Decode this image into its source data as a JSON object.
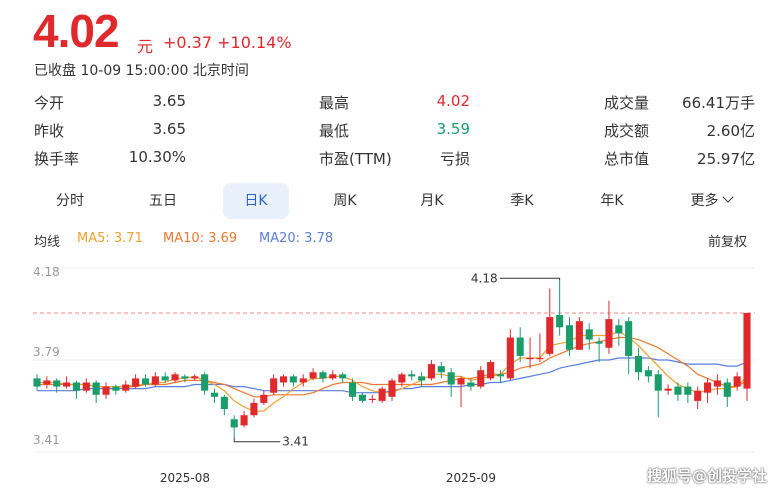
{
  "quote": {
    "price": "4.02",
    "unit": "元",
    "change": "+0.37 +10.14%",
    "status": "已收盘 10-09 15:00:00 北京时间"
  },
  "stats": [
    {
      "label": "今开",
      "value": "3.65",
      "color": "normal"
    },
    {
      "label": "最高",
      "value": "4.02",
      "color": "red"
    },
    {
      "label": "成交量",
      "value": "66.41万手",
      "color": "normal"
    },
    {
      "label": "昨收",
      "value": "3.65",
      "color": "normal"
    },
    {
      "label": "最低",
      "value": "3.59",
      "color": "green"
    },
    {
      "label": "成交额",
      "value": "2.60亿",
      "color": "normal"
    },
    {
      "label": "换手率",
      "value": "10.30%",
      "color": "normal"
    },
    {
      "label": "市盈(TTM)",
      "value": "亏损",
      "color": "normal"
    },
    {
      "label": "总市值",
      "value": "25.97亿",
      "color": "normal"
    }
  ],
  "tabs": [
    "分时",
    "五日",
    "日K",
    "周K",
    "月K",
    "季K",
    "年K",
    "更多"
  ],
  "active_tab": "日K",
  "more_icon": "chevron-down-icon",
  "ma": {
    "label": "均线",
    "ma5": "MA5: 3.71",
    "ma10": "MA10: 3.69",
    "ma20": "MA20: 3.78",
    "adjust": "前复权"
  },
  "colors": {
    "up": "#e0292d",
    "down": "#1a9c6b",
    "ma5": "#f0a030",
    "ma10": "#f07830",
    "ma20": "#5a7fe0",
    "accent": "#2b63c8"
  },
  "chart_data": {
    "type": "candlestick",
    "y_ticks": [
      "4.18",
      "3.79",
      "3.41"
    ],
    "x_ticks": [
      "2025-08",
      "2025-09"
    ],
    "ylim": [
      3.41,
      4.18
    ],
    "max_label": "4.18",
    "min_label": "3.41",
    "last_close_line": 4.02,
    "candles": [
      [
        3.7,
        3.66,
        3.72,
        3.64
      ],
      [
        3.67,
        3.69,
        3.71,
        3.65
      ],
      [
        3.69,
        3.66,
        3.7,
        3.63
      ],
      [
        3.66,
        3.68,
        3.71,
        3.65
      ],
      [
        3.68,
        3.64,
        3.69,
        3.6
      ],
      [
        3.64,
        3.68,
        3.7,
        3.63
      ],
      [
        3.68,
        3.62,
        3.69,
        3.58
      ],
      [
        3.62,
        3.66,
        3.68,
        3.6
      ],
      [
        3.66,
        3.64,
        3.67,
        3.62
      ],
      [
        3.64,
        3.67,
        3.69,
        3.63
      ],
      [
        3.66,
        3.7,
        3.72,
        3.65
      ],
      [
        3.7,
        3.67,
        3.72,
        3.66
      ],
      [
        3.67,
        3.71,
        3.73,
        3.66
      ],
      [
        3.71,
        3.69,
        3.73,
        3.68
      ],
      [
        3.69,
        3.72,
        3.73,
        3.68
      ],
      [
        3.71,
        3.7,
        3.72,
        3.68
      ],
      [
        3.7,
        3.71,
        3.72,
        3.69
      ],
      [
        3.72,
        3.64,
        3.73,
        3.62
      ],
      [
        3.63,
        3.61,
        3.65,
        3.58
      ],
      [
        3.61,
        3.55,
        3.62,
        3.52
      ],
      [
        3.5,
        3.46,
        3.52,
        3.41
      ],
      [
        3.47,
        3.52,
        3.54,
        3.46
      ],
      [
        3.52,
        3.58,
        3.6,
        3.51
      ],
      [
        3.58,
        3.62,
        3.64,
        3.57
      ],
      [
        3.63,
        3.7,
        3.72,
        3.62
      ],
      [
        3.68,
        3.71,
        3.72,
        3.66
      ],
      [
        3.71,
        3.68,
        3.72,
        3.66
      ],
      [
        3.68,
        3.7,
        3.72,
        3.66
      ],
      [
        3.7,
        3.73,
        3.75,
        3.69
      ],
      [
        3.73,
        3.7,
        3.74,
        3.68
      ],
      [
        3.7,
        3.72,
        3.74,
        3.69
      ],
      [
        3.72,
        3.7,
        3.73,
        3.68
      ],
      [
        3.68,
        3.61,
        3.7,
        3.59
      ],
      [
        3.62,
        3.59,
        3.63,
        3.58
      ],
      [
        3.6,
        3.6,
        3.62,
        3.58
      ],
      [
        3.59,
        3.65,
        3.66,
        3.58
      ],
      [
        3.61,
        3.69,
        3.7,
        3.59
      ],
      [
        3.68,
        3.72,
        3.73,
        3.66
      ],
      [
        3.72,
        3.71,
        3.74,
        3.69
      ],
      [
        3.71,
        3.69,
        3.73,
        3.66
      ],
      [
        3.7,
        3.77,
        3.79,
        3.69
      ],
      [
        3.76,
        3.73,
        3.78,
        3.7
      ],
      [
        3.73,
        3.67,
        3.75,
        3.61
      ],
      [
        3.67,
        3.7,
        3.71,
        3.56
      ],
      [
        3.68,
        3.66,
        3.7,
        3.64
      ],
      [
        3.66,
        3.74,
        3.76,
        3.65
      ],
      [
        3.7,
        3.78,
        3.79,
        3.69
      ],
      [
        3.72,
        3.71,
        3.74,
        3.68
      ],
      [
        3.7,
        3.9,
        3.94,
        3.69
      ],
      [
        3.9,
        3.81,
        3.95,
        3.78
      ],
      [
        3.8,
        3.8,
        3.9,
        3.75
      ],
      [
        3.8,
        3.8,
        3.92,
        3.78
      ],
      [
        3.82,
        4.0,
        4.14,
        3.81
      ],
      [
        4.01,
        3.95,
        4.18,
        3.91
      ],
      [
        3.96,
        3.84,
        4.0,
        3.81
      ],
      [
        3.84,
        3.98,
        4.0,
        3.84
      ],
      [
        3.94,
        3.89,
        3.97,
        3.84
      ],
      [
        3.88,
        3.87,
        3.9,
        3.78
      ],
      [
        3.85,
        3.99,
        4.08,
        3.82
      ],
      [
        3.96,
        3.92,
        3.99,
        3.86
      ],
      [
        3.98,
        3.81,
        4.0,
        3.72
      ],
      [
        3.81,
        3.73,
        3.85,
        3.69
      ],
      [
        3.74,
        3.71,
        3.76,
        3.68
      ],
      [
        3.72,
        3.64,
        3.74,
        3.51
      ],
      [
        3.64,
        3.65,
        3.67,
        3.62
      ],
      [
        3.66,
        3.62,
        3.68,
        3.59
      ],
      [
        3.66,
        3.62,
        3.68,
        3.58
      ],
      [
        3.59,
        3.64,
        3.66,
        3.55
      ],
      [
        3.63,
        3.68,
        3.7,
        3.58
      ],
      [
        3.66,
        3.69,
        3.72,
        3.62
      ],
      [
        3.68,
        3.61,
        3.7,
        3.56
      ],
      [
        3.66,
        3.71,
        3.73,
        3.64
      ],
      [
        3.65,
        4.02,
        4.02,
        3.59
      ]
    ],
    "ma5": [
      3.68,
      3.68,
      3.68,
      3.67,
      3.67,
      3.67,
      3.66,
      3.66,
      3.66,
      3.66,
      3.67,
      3.67,
      3.68,
      3.68,
      3.7,
      3.7,
      3.71,
      3.69,
      3.67,
      3.64,
      3.59,
      3.56,
      3.54,
      3.54,
      3.58,
      3.61,
      3.65,
      3.68,
      3.7,
      3.7,
      3.71,
      3.71,
      3.69,
      3.66,
      3.64,
      3.63,
      3.63,
      3.65,
      3.67,
      3.69,
      3.72,
      3.72,
      3.71,
      3.71,
      3.69,
      3.7,
      3.71,
      3.72,
      3.77,
      3.8,
      3.8,
      3.8,
      3.86,
      3.87,
      3.88,
      3.91,
      3.91,
      3.91,
      3.91,
      3.93,
      3.9,
      3.86,
      3.81,
      3.76,
      3.71,
      3.67,
      3.65,
      3.63,
      3.64,
      3.65,
      3.65,
      3.66,
      3.71
    ],
    "ma10": [
      3.67,
      3.67,
      3.67,
      3.67,
      3.67,
      3.67,
      3.66,
      3.66,
      3.66,
      3.66,
      3.66,
      3.67,
      3.67,
      3.67,
      3.68,
      3.69,
      3.69,
      3.69,
      3.68,
      3.67,
      3.65,
      3.63,
      3.61,
      3.61,
      3.62,
      3.62,
      3.62,
      3.62,
      3.63,
      3.65,
      3.67,
      3.68,
      3.68,
      3.68,
      3.67,
      3.67,
      3.67,
      3.67,
      3.67,
      3.67,
      3.67,
      3.68,
      3.69,
      3.7,
      3.7,
      3.71,
      3.72,
      3.72,
      3.73,
      3.75,
      3.76,
      3.77,
      3.8,
      3.82,
      3.84,
      3.86,
      3.87,
      3.88,
      3.89,
      3.9,
      3.9,
      3.89,
      3.87,
      3.85,
      3.82,
      3.79,
      3.76,
      3.72,
      3.7,
      3.68,
      3.66,
      3.66,
      3.69
    ],
    "ma20": [
      3.64,
      3.64,
      3.64,
      3.64,
      3.64,
      3.65,
      3.65,
      3.65,
      3.65,
      3.65,
      3.65,
      3.65,
      3.66,
      3.66,
      3.66,
      3.66,
      3.67,
      3.67,
      3.67,
      3.67,
      3.66,
      3.66,
      3.65,
      3.64,
      3.64,
      3.64,
      3.64,
      3.64,
      3.64,
      3.64,
      3.64,
      3.64,
      3.63,
      3.63,
      3.63,
      3.63,
      3.64,
      3.65,
      3.65,
      3.66,
      3.66,
      3.66,
      3.66,
      3.66,
      3.67,
      3.67,
      3.68,
      3.68,
      3.69,
      3.7,
      3.71,
      3.72,
      3.73,
      3.75,
      3.76,
      3.77,
      3.78,
      3.79,
      3.79,
      3.8,
      3.8,
      3.8,
      3.8,
      3.79,
      3.79,
      3.78,
      3.77,
      3.77,
      3.77,
      3.77,
      3.76,
      3.76,
      3.78
    ]
  },
  "watermark": "搜狐号@创投学社"
}
